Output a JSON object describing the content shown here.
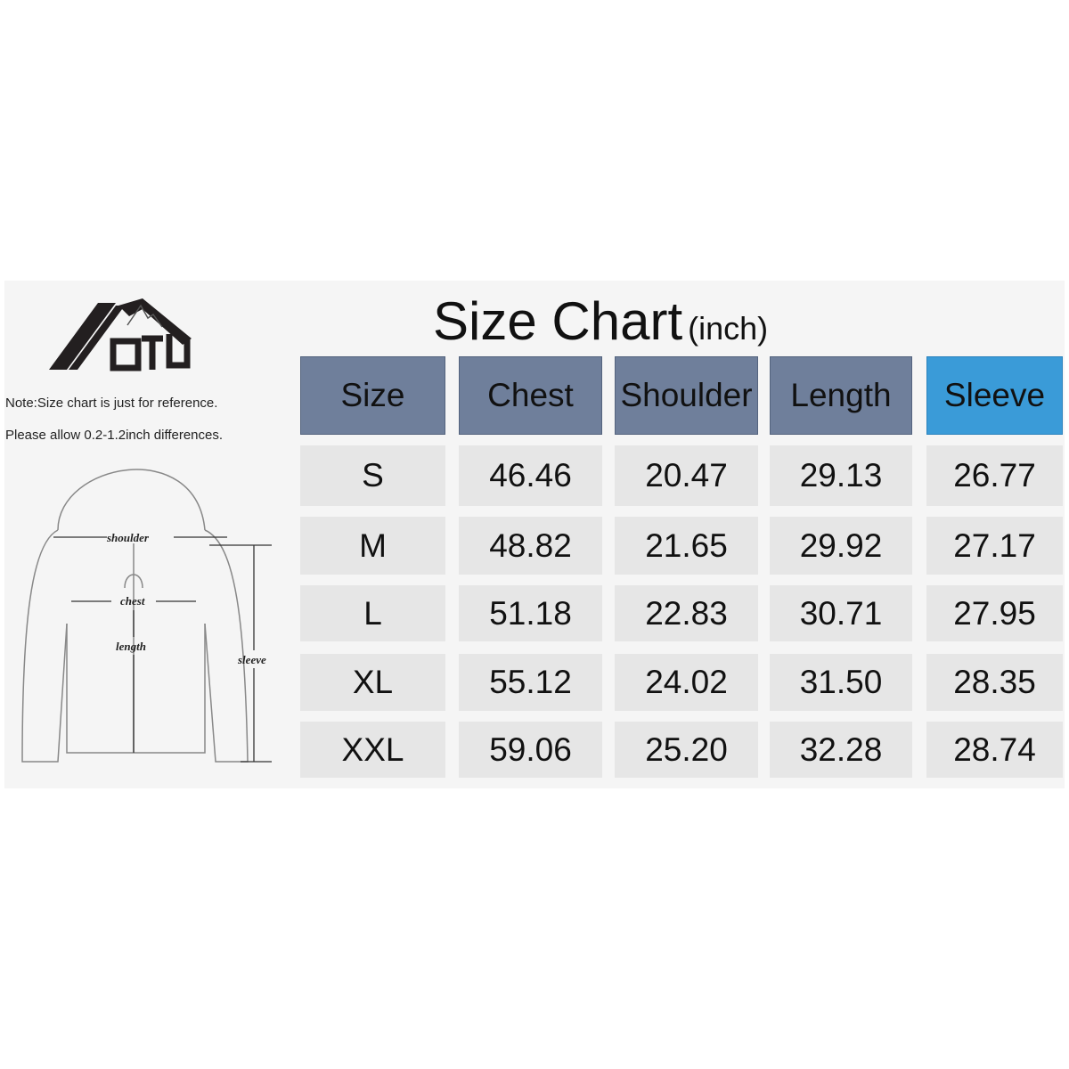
{
  "title": {
    "main": "Size Chart",
    "unit": "(inch)"
  },
  "logo": {
    "text": "OTU"
  },
  "notes": [
    "Note:Size chart is just for reference.",
    "Please allow 0.2-1.2inch differences."
  ],
  "diagram": {
    "labels": {
      "shoulder": "shoulder",
      "chest": "chest",
      "length": "length",
      "sleeve": "sleeve"
    }
  },
  "colors": {
    "header": "#6f7f9b",
    "header_accent": "#3a9bd8",
    "cell": "#e6e6e6"
  },
  "table": {
    "headers": [
      "Size",
      "Chest",
      "Shoulder",
      "Length",
      "Sleeve"
    ],
    "rows": [
      [
        "S",
        "46.46",
        "20.47",
        "29.13",
        "26.77"
      ],
      [
        "M",
        "48.82",
        "21.65",
        "29.92",
        "27.17"
      ],
      [
        "L",
        "51.18",
        "22.83",
        "30.71",
        "27.95"
      ],
      [
        "XL",
        "55.12",
        "24.02",
        "31.50",
        "28.35"
      ],
      [
        "XXL",
        "59.06",
        "25.20",
        "32.28",
        "28.74"
      ]
    ]
  }
}
